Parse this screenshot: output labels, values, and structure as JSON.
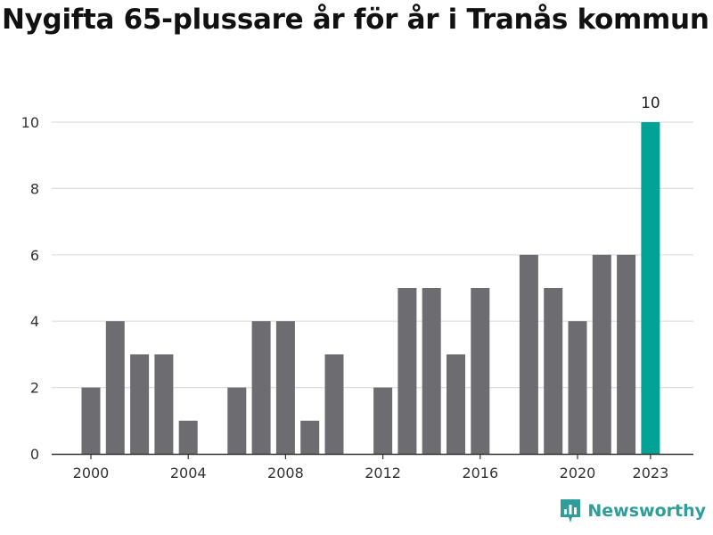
{
  "title": "Nygifta 65-plussare år för år i Tranås kommun",
  "brand": {
    "name": "Newsworthy",
    "icon": "newsworthy-logo-icon",
    "color": "#2f9e9a"
  },
  "chart_data": {
    "type": "bar",
    "title": "Nygifta 65-plussare år för år i Tranås kommun",
    "xlabel": "",
    "ylabel": "",
    "ylim": [
      0,
      10
    ],
    "yticks": [
      "0",
      "2",
      "4",
      "6",
      "8",
      "10"
    ],
    "xticks": [
      "2000",
      "2004",
      "2008",
      "2012",
      "2016",
      "2020",
      "2023"
    ],
    "grid": true,
    "categories": [
      "2000",
      "2001",
      "2002",
      "2003",
      "2004",
      "2005",
      "2006",
      "2007",
      "2008",
      "2009",
      "2010",
      "2011",
      "2012",
      "2013",
      "2014",
      "2015",
      "2016",
      "2017",
      "2018",
      "2019",
      "2020",
      "2021",
      "2022",
      "2023"
    ],
    "values": [
      2,
      4,
      3,
      3,
      1,
      0,
      2,
      4,
      4,
      1,
      3,
      0,
      2,
      5,
      5,
      3,
      5,
      0,
      6,
      5,
      4,
      6,
      6,
      10
    ],
    "highlight": {
      "category": "2023",
      "label": "10"
    },
    "colors": {
      "bar": "#6d6c71",
      "highlight": "#00a396",
      "grid": "#dddddd",
      "axis": "#333333"
    }
  }
}
